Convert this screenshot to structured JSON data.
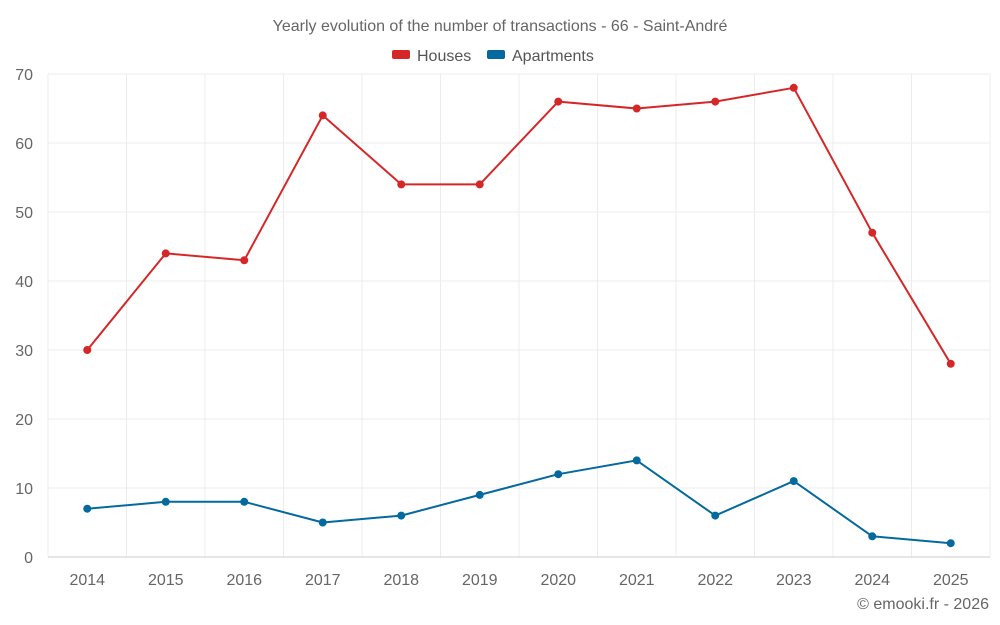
{
  "chart_data": {
    "type": "line",
    "title": "Yearly evolution of the number of transactions - 66 - Saint-André",
    "categories": [
      "2014",
      "2015",
      "2016",
      "2017",
      "2018",
      "2019",
      "2020",
      "2021",
      "2022",
      "2023",
      "2024",
      "2025"
    ],
    "series": [
      {
        "name": "Houses",
        "color": "#d62728",
        "values": [
          30,
          44,
          43,
          64,
          54,
          54,
          66,
          65,
          66,
          68,
          47,
          28
        ]
      },
      {
        "name": "Apartments",
        "color": "#04699e",
        "values": [
          7,
          8,
          8,
          5,
          6,
          9,
          12,
          14,
          6,
          11,
          3,
          2
        ]
      }
    ],
    "ylim": [
      0,
      70
    ],
    "yticks": [
      0,
      10,
      20,
      30,
      40,
      50,
      60,
      70
    ],
    "xlabel": "",
    "ylabel": "",
    "grid": true,
    "legend_position": "top-center"
  },
  "credit": "© emooki.fr - 2026"
}
